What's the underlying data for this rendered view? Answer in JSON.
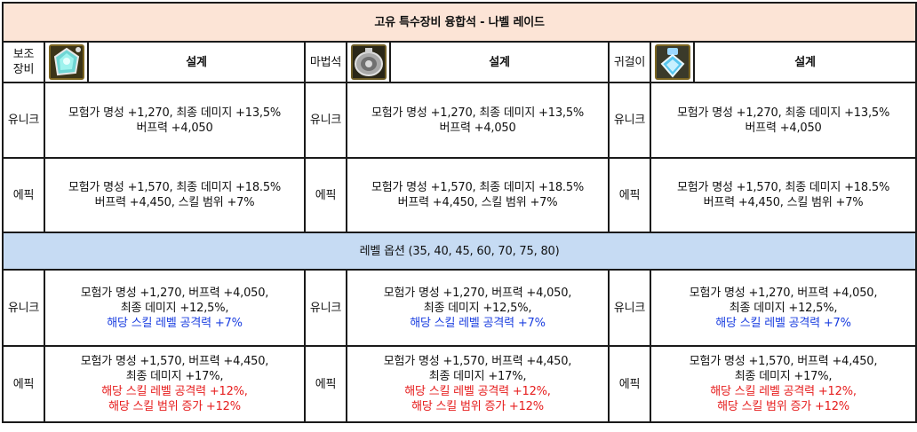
{
  "title": "고유 특수장비 융합석 - 나벨 레이드",
  "level_option_label": "레벨 옵션 (35, 40, 45, 60, 70, 75, 80)",
  "design_label": "설계",
  "grades": {
    "unique": "유니크",
    "epic": "에픽"
  },
  "colors": {
    "unique": "#e007e0",
    "epic": "#f0a800",
    "title_bg": "#fce4d6",
    "level_bg": "#c6dbf3",
    "blue_text": "#1a3ee0",
    "red_text": "#e61d1d"
  },
  "columns": [
    {
      "slot_label": "보조\n장비",
      "icon": "sub-equipment-icon"
    },
    {
      "slot_label": "마법석",
      "icon": "magic-stone-icon"
    },
    {
      "slot_label": "귀걸이",
      "icon": "earring-icon"
    }
  ],
  "base_options": {
    "unique": {
      "line1": "모험가 명성 +1,270, 최종 데미지 +13,5%",
      "line2": "버프력 +4,050"
    },
    "epic": {
      "line1": "모험가 명성 +1,570, 최종 데미지 +18.5%",
      "line2": "버프력 +4,450, 스킬 범위 +7%"
    }
  },
  "level_options": {
    "unique": {
      "line1": "모험가 명성 +1,270, 버프력 +4,050,",
      "line2": "최종 데미지 +12,5%,",
      "line3": "해당 스킬 레벨 공격력 +7%"
    },
    "epic": {
      "line1": "모험가 명성 +1,570, 버프력 +4,450,",
      "line2": "최종 데미지 +17%,",
      "line3": "해당 스킬 레벨 공격력 +12%,",
      "line4": "해당 스킬 범위 증가 +12%"
    }
  }
}
